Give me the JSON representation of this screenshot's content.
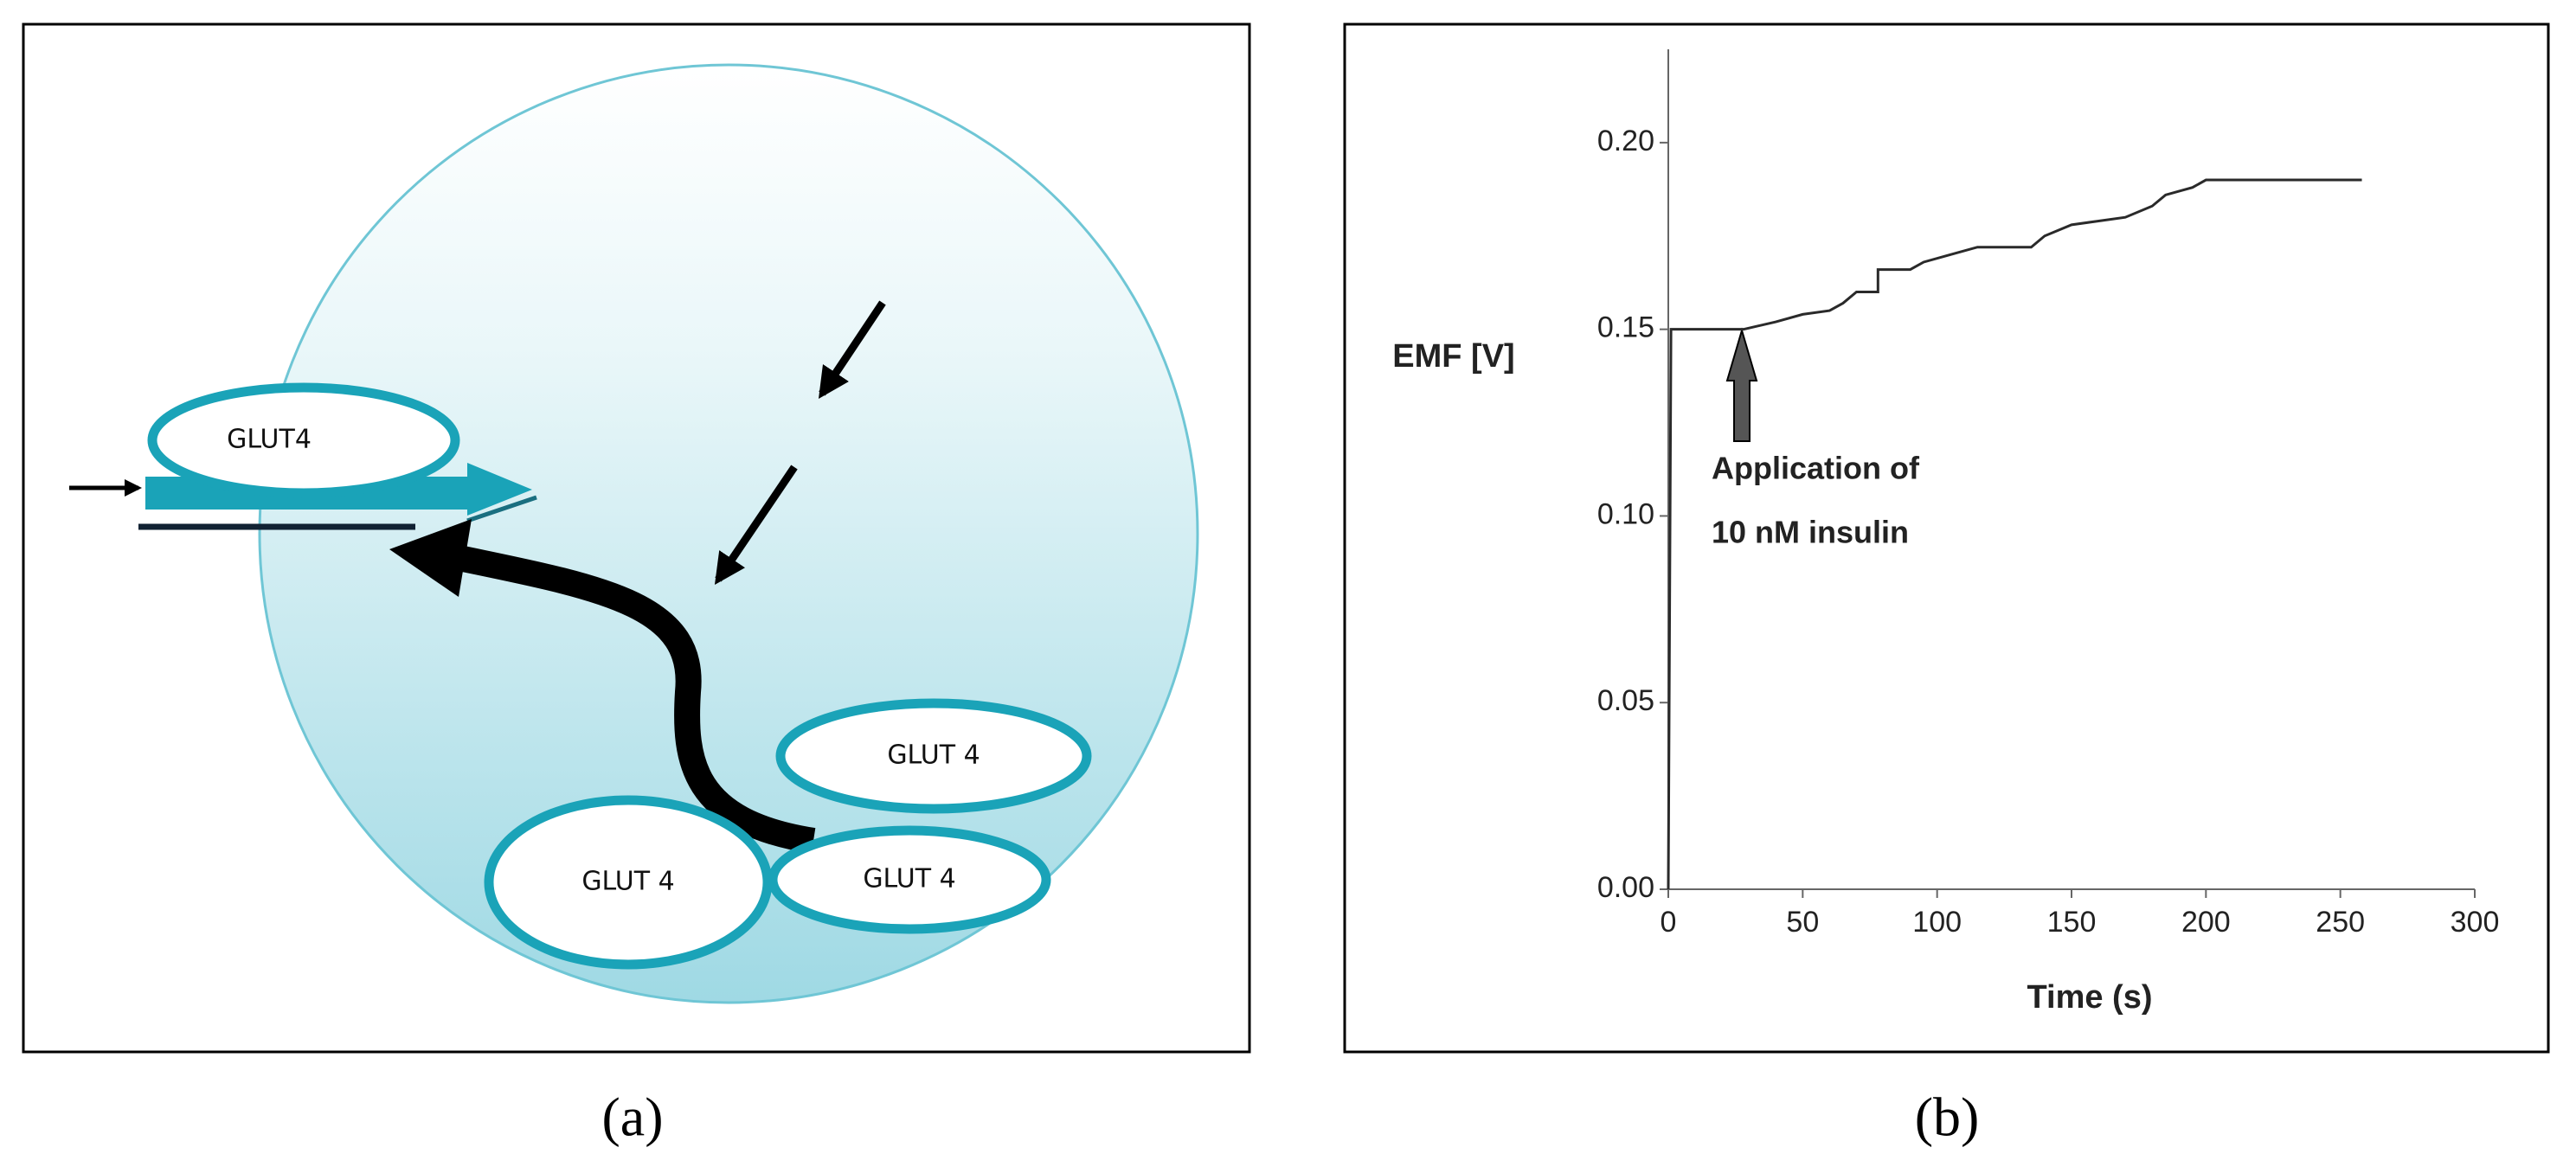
{
  "diagram": {
    "labels": [
      "GLUT4",
      "GLUT 4",
      "GLUT 4",
      "GLUT 4"
    ]
  },
  "panel_labels": [
    "(a)",
    "(b)"
  ],
  "chart_data": {
    "type": "line",
    "y_label": "EMF [V]",
    "x_label": "Time (s)",
    "annotation": [
      "Application of",
      "10 nM insulin"
    ],
    "x": [
      0,
      1,
      28,
      40,
      50,
      60,
      65,
      70,
      78,
      78,
      90,
      95,
      105,
      115,
      135,
      140,
      150,
      170,
      180,
      185,
      195,
      200,
      210,
      258
    ],
    "values": [
      0.0,
      0.15,
      0.15,
      0.152,
      0.154,
      0.155,
      0.157,
      0.16,
      0.16,
      0.166,
      0.166,
      0.168,
      0.17,
      0.172,
      0.172,
      0.175,
      0.178,
      0.18,
      0.183,
      0.186,
      0.188,
      0.19,
      0.19,
      0.19
    ],
    "color": "#2a2a2a",
    "xlim": [
      0,
      300
    ],
    "xticks": [
      0,
      50,
      100,
      150,
      200,
      250,
      300
    ],
    "ylim": [
      0,
      0.225
    ],
    "yticks": [
      {
        "value": 0,
        "label": "0.00"
      },
      {
        "value": 0.05,
        "label": "0.05"
      },
      {
        "value": 0.1,
        "label": "0.10"
      },
      {
        "value": 0.15,
        "label": "0.15"
      },
      {
        "value": 0.2,
        "label": "0.20"
      }
    ],
    "grid": false
  }
}
